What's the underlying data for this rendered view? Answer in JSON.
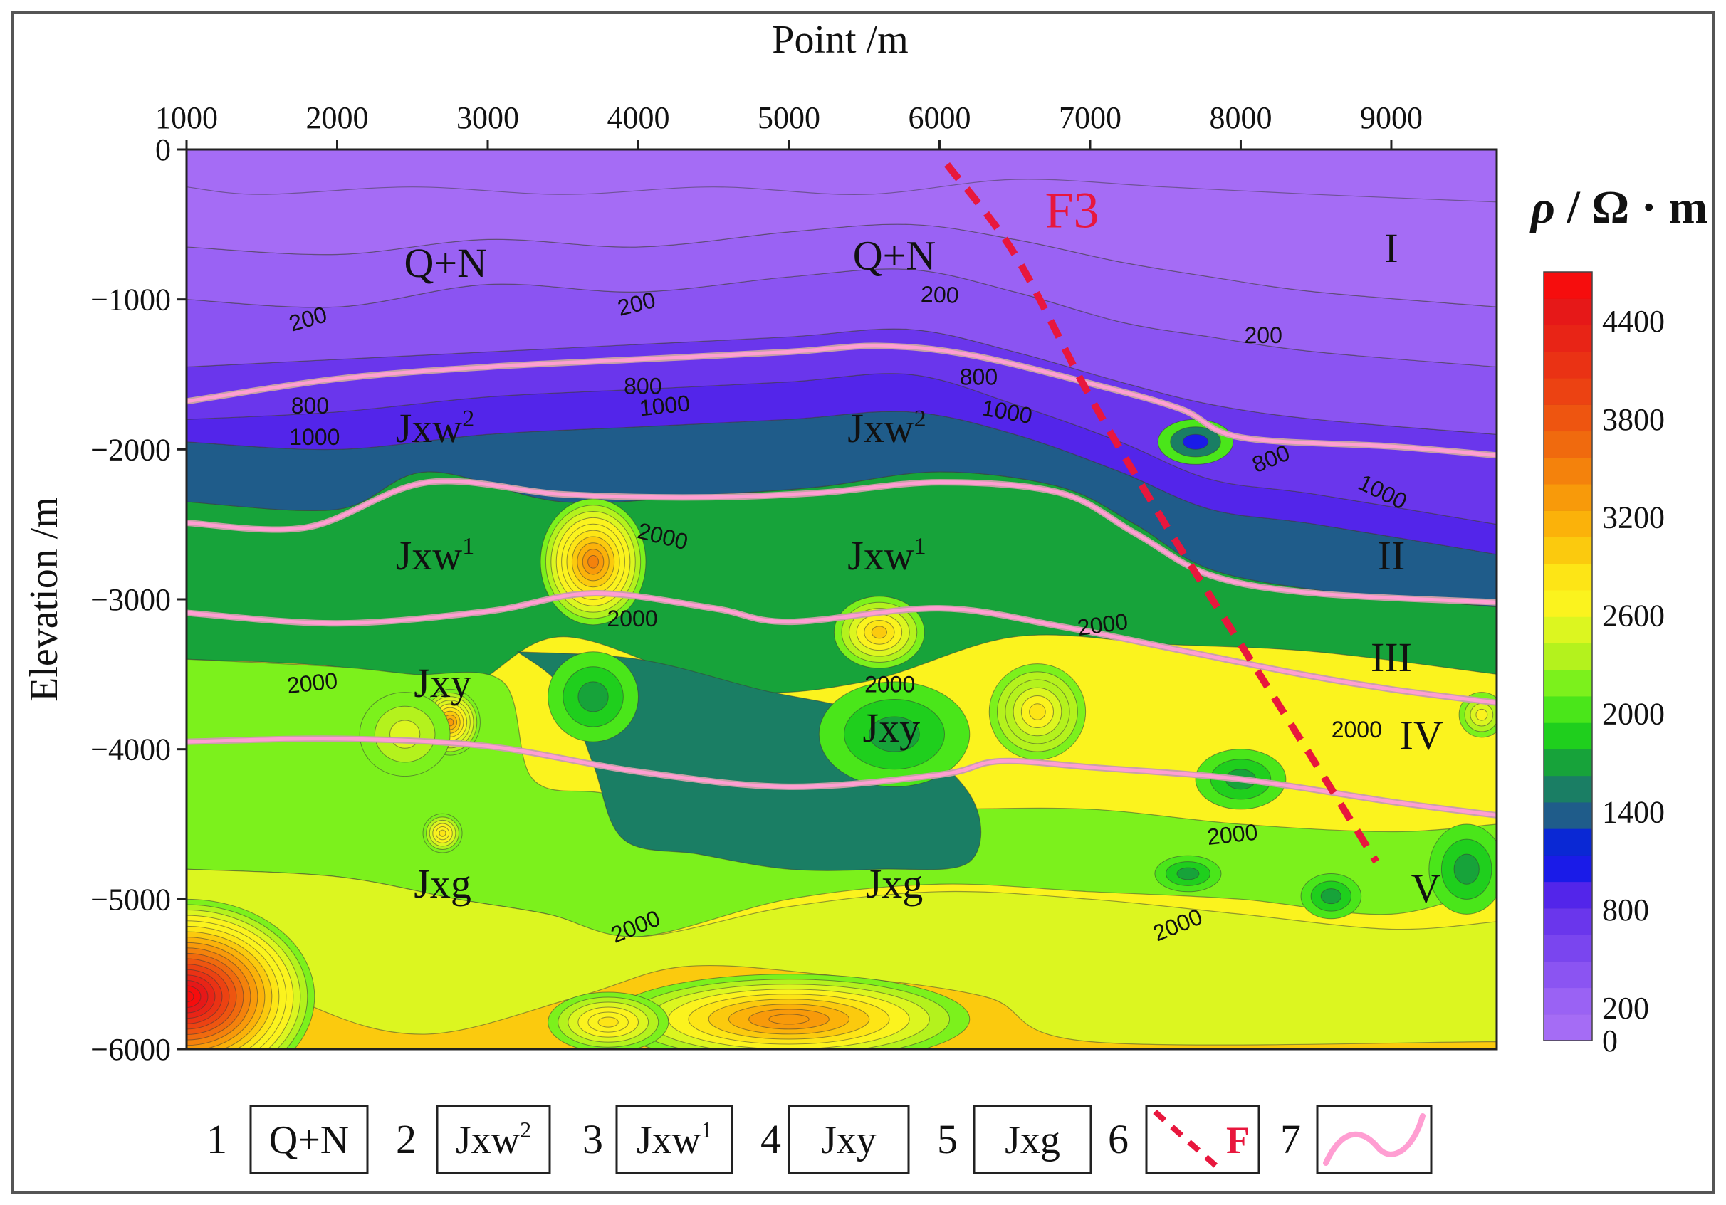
{
  "chart_data": {
    "type": "heatmap",
    "xlabel": "Point /m",
    "ylabel": "Elevation /m",
    "xlim": [
      1000,
      9700
    ],
    "ylim": [
      -6000,
      0
    ],
    "x_ticks": [
      "1000",
      "2000",
      "3000",
      "4000",
      "5000",
      "6000",
      "7000",
      "8000",
      "9000"
    ],
    "y_ticks": [
      "0",
      "−1000",
      "−2000",
      "−3000",
      "−4000",
      "−5000",
      "−6000"
    ],
    "colorbar": {
      "label_symbol": "ρ",
      "label_unit": " / Ω · m",
      "range": [
        0,
        4700
      ],
      "tick_labels": [
        "4400",
        "3800",
        "3200",
        "2600",
        "2000",
        "1400",
        "800",
        "200",
        "0"
      ],
      "colors": [
        "#a56cf5",
        "#9a62f4",
        "#8b54f2",
        "#7a45ef",
        "#6a36ec",
        "#5325ea",
        "#1a1be8",
        "#0a28d4",
        "#1f5c8a",
        "#1a7e64",
        "#17a33a",
        "#1fcf1d",
        "#4ae61a",
        "#7cf11c",
        "#b4f21d",
        "#dcf620",
        "#fbf31e",
        "#fde516",
        "#fbca0e",
        "#fbb20a",
        "#f89a0a",
        "#f4820c",
        "#f06a0e",
        "#ee5510",
        "#ec4212",
        "#ea3214",
        "#e82416",
        "#e61818",
        "#f60d0d"
      ]
    },
    "formation_labels": [
      {
        "text": "Q+N",
        "x": 2720,
        "y": -850
      },
      {
        "text": "Q+N",
        "x": 5700,
        "y": -800
      },
      {
        "text": "Jxw",
        "sup": "2",
        "x": 2650,
        "y": -1950
      },
      {
        "text": "Jxw",
        "sup": "2",
        "x": 5650,
        "y": -1950
      },
      {
        "text": "Jxw",
        "sup": "1",
        "x": 2650,
        "y": -2800
      },
      {
        "text": "Jxw",
        "sup": "1",
        "x": 5650,
        "y": -2800
      },
      {
        "text": "Jxy",
        "x": 2700,
        "y": -3650
      },
      {
        "text": "Jxy",
        "x": 5680,
        "y": -3950
      },
      {
        "text": "Jxg",
        "x": 2700,
        "y": -4990
      },
      {
        "text": "Jxg",
        "x": 5700,
        "y": -4990
      }
    ],
    "zone_labels": [
      {
        "text": "I",
        "x": 9000,
        "y": -750
      },
      {
        "text": "II",
        "x": 9000,
        "y": -2800
      },
      {
        "text": "III",
        "x": 9000,
        "y": -3480
      },
      {
        "text": "IV",
        "x": 9200,
        "y": -4000
      },
      {
        "text": "V",
        "x": 9230,
        "y": -5020
      }
    ],
    "contour_labels": [
      {
        "text": "200",
        "x": 1820,
        "y": -1180,
        "rot": -16
      },
      {
        "text": "200",
        "x": 4000,
        "y": -1080,
        "rot": -14
      },
      {
        "text": "200",
        "x": 6000,
        "y": -1020,
        "rot": 2
      },
      {
        "text": "200",
        "x": 8150,
        "y": -1290,
        "rot": 0
      },
      {
        "text": "800",
        "x": 1820,
        "y": -1760,
        "rot": 0
      },
      {
        "text": "1000",
        "x": 1850,
        "y": -1970,
        "rot": 0
      },
      {
        "text": "800",
        "x": 4030,
        "y": -1630,
        "rot": 0
      },
      {
        "text": "1000",
        "x": 4180,
        "y": -1760,
        "rot": -6
      },
      {
        "text": "800",
        "x": 6260,
        "y": -1570,
        "rot": 0
      },
      {
        "text": "1000",
        "x": 6440,
        "y": -1800,
        "rot": 10
      },
      {
        "text": "800",
        "x": 8220,
        "y": -2110,
        "rot": -22
      },
      {
        "text": "1000",
        "x": 8920,
        "y": -2330,
        "rot": 26
      },
      {
        "text": "2000",
        "x": 4150,
        "y": -2630,
        "rot": 14
      },
      {
        "text": "2000",
        "x": 3960,
        "y": -3180,
        "rot": 0
      },
      {
        "text": "2000",
        "x": 1840,
        "y": -3610,
        "rot": -6
      },
      {
        "text": "2000",
        "x": 5670,
        "y": -3620,
        "rot": 0
      },
      {
        "text": "2000",
        "x": 7090,
        "y": -3220,
        "rot": -8
      },
      {
        "text": "2000",
        "x": 8770,
        "y": -3920,
        "rot": 0
      },
      {
        "text": "2000",
        "x": 7950,
        "y": -4620,
        "rot": -6
      },
      {
        "text": "2000",
        "x": 4000,
        "y": -5230,
        "rot": -22
      },
      {
        "text": "2000",
        "x": 7600,
        "y": -5220,
        "rot": -22
      }
    ],
    "boundaries": [
      {
        "name": "base Q+N",
        "points": [
          [
            1000,
            -1680
          ],
          [
            2000,
            -1530
          ],
          [
            3000,
            -1450
          ],
          [
            4000,
            -1400
          ],
          [
            5000,
            -1350
          ],
          [
            5600,
            -1310
          ],
          [
            6200,
            -1370
          ],
          [
            7000,
            -1560
          ],
          [
            7600,
            -1730
          ],
          [
            8000,
            -1920
          ],
          [
            9000,
            -1980
          ],
          [
            9700,
            -2040
          ]
        ]
      },
      {
        "name": "base Jxw2",
        "points": [
          [
            1000,
            -2490
          ],
          [
            1800,
            -2520
          ],
          [
            2600,
            -2220
          ],
          [
            3500,
            -2300
          ],
          [
            4400,
            -2320
          ],
          [
            5200,
            -2290
          ],
          [
            6000,
            -2220
          ],
          [
            6800,
            -2290
          ],
          [
            7300,
            -2560
          ],
          [
            7800,
            -2840
          ],
          [
            8500,
            -2960
          ],
          [
            9700,
            -3020
          ]
        ]
      },
      {
        "name": "base Jxw1",
        "points": [
          [
            1000,
            -3090
          ],
          [
            2000,
            -3160
          ],
          [
            3000,
            -3080
          ],
          [
            3700,
            -2960
          ],
          [
            4500,
            -3060
          ],
          [
            5000,
            -3150
          ],
          [
            6000,
            -3060
          ],
          [
            6800,
            -3180
          ],
          [
            7600,
            -3340
          ],
          [
            8400,
            -3500
          ],
          [
            9000,
            -3600
          ],
          [
            9700,
            -3690
          ]
        ]
      },
      {
        "name": "base Jxy",
        "points": [
          [
            1000,
            -3950
          ],
          [
            2000,
            -3930
          ],
          [
            3000,
            -3980
          ],
          [
            4000,
            -4150
          ],
          [
            5000,
            -4250
          ],
          [
            6000,
            -4170
          ],
          [
            6400,
            -4080
          ],
          [
            7000,
            -4120
          ],
          [
            8000,
            -4200
          ],
          [
            9000,
            -4350
          ],
          [
            9700,
            -4440
          ]
        ]
      }
    ],
    "fault": {
      "name": "F3",
      "points": [
        [
          6050,
          -100
        ],
        [
          6500,
          -700
        ],
        [
          7000,
          -1650
        ],
        [
          7500,
          -2500
        ],
        [
          8000,
          -3300
        ],
        [
          8500,
          -4100
        ],
        [
          8900,
          -4750
        ]
      ],
      "label_x": 6700,
      "label_y": -520
    },
    "anomalies": [
      {
        "x": 3700,
        "y": -2750,
        "value": 3500,
        "rx": 350,
        "ry": 420
      },
      {
        "x": 2750,
        "y": -3820,
        "value": 3300,
        "rx": 200,
        "ry": 220
      },
      {
        "x": 5600,
        "y": -3220,
        "value": 2950,
        "rx": 300,
        "ry": 240
      },
      {
        "x": 6650,
        "y": -3750,
        "value": 2850,
        "rx": 320,
        "ry": 320
      },
      {
        "x": 2700,
        "y": -4560,
        "value": 2900,
        "rx": 130,
        "ry": 130
      },
      {
        "x": 1000,
        "y": -5650,
        "value": 4700,
        "rx": 850,
        "ry": 650
      },
      {
        "x": 5000,
        "y": -5800,
        "value": 3400,
        "rx": 1200,
        "ry": 300
      },
      {
        "x": 3800,
        "y": -5820,
        "value": 2900,
        "rx": 400,
        "ry": 200
      },
      {
        "x": 9600,
        "y": -3770,
        "value": 2600,
        "rx": 150,
        "ry": 150
      },
      {
        "x": 2450,
        "y": -3900,
        "value": 2500,
        "rx": 300,
        "ry": 280
      },
      {
        "x": 8000,
        "y": -4200,
        "value": 1500,
        "rx": 300,
        "ry": 200
      },
      {
        "x": 7650,
        "y": -4830,
        "value": 1500,
        "rx": 220,
        "ry": 120
      },
      {
        "x": 8600,
        "y": -4980,
        "value": 1500,
        "rx": 200,
        "ry": 150
      },
      {
        "x": 5700,
        "y": -3900,
        "value": 1500,
        "rx": 500,
        "ry": 350
      },
      {
        "x": 9500,
        "y": -4800,
        "value": 1500,
        "rx": 250,
        "ry": 300
      },
      {
        "x": 3700,
        "y": -3650,
        "value": 1600,
        "rx": 300,
        "ry": 300
      },
      {
        "x": 7700,
        "y": -1950,
        "value": 700,
        "rx": 250,
        "ry": 150
      }
    ]
  },
  "legend": [
    {
      "num": "1",
      "text": "Q+N"
    },
    {
      "num": "2",
      "text": "Jxw",
      "sup": "2"
    },
    {
      "num": "3",
      "text": "Jxw",
      "sup": "1"
    },
    {
      "num": "4",
      "text": "Jxy"
    },
    {
      "num": "5",
      "text": "Jxg"
    },
    {
      "num": "6",
      "text": "F"
    },
    {
      "num": "7",
      "text": ""
    }
  ]
}
